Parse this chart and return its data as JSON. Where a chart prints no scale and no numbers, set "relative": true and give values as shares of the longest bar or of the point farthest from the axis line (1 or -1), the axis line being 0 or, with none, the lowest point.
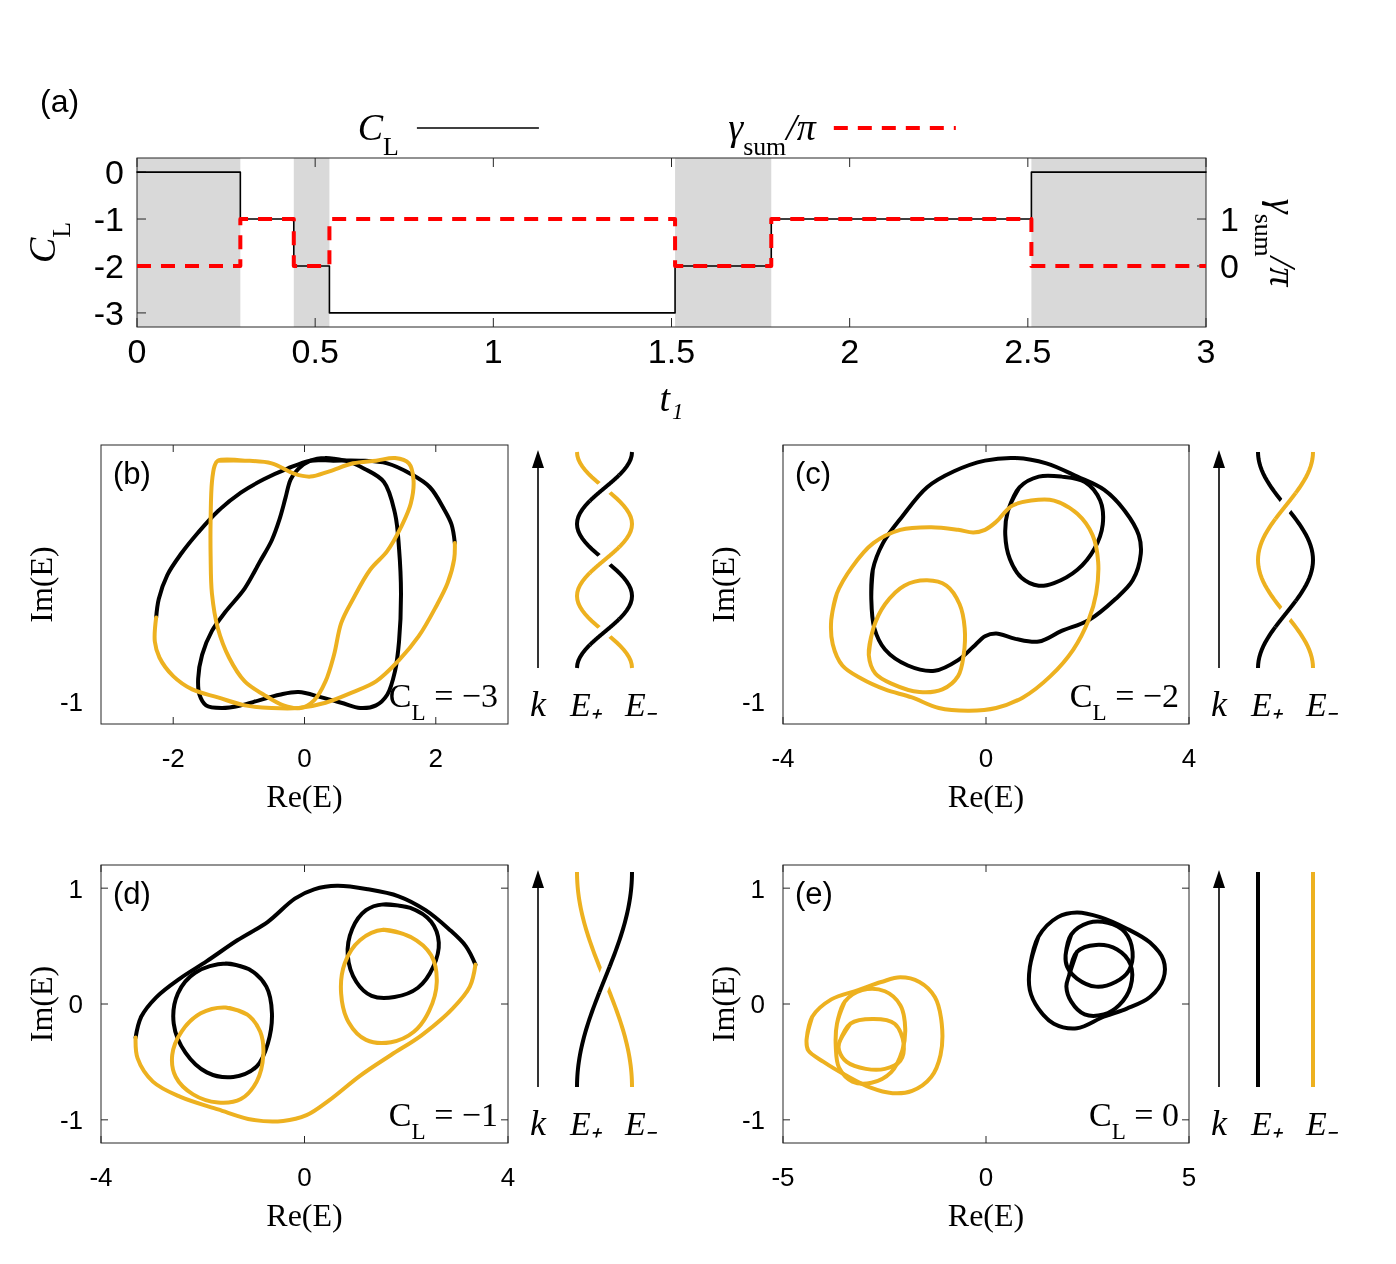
{
  "chart_data": [
    {
      "type": "step",
      "xlabel": "t₁",
      "ylabel": "C$_{L}$",
      "y2label": "γ$_{sum}$/π",
      "annotations": [
        "(a)"
      ],
      "xlim": [
        0,
        3
      ],
      "xticks": [
        0,
        0.5,
        1,
        1.5,
        2,
        2.5,
        3
      ],
      "ylim": [
        -3.3,
        0.3
      ],
      "yticks": [
        -3,
        -2,
        -1,
        0
      ],
      "y2lim": [
        -1.3,
        2.3
      ],
      "y2ticks": [
        0,
        1
      ],
      "legend": "top",
      "bands": [
        {
          "axis": "x",
          "from": 0,
          "to": 0.29,
          "color": "#d9d9d9"
        },
        {
          "axis": "x",
          "from": 0.44,
          "to": 0.54,
          "color": "#d9d9d9"
        },
        {
          "axis": "x",
          "from": 1.51,
          "to": 1.78,
          "color": "#d9d9d9"
        },
        {
          "axis": "x",
          "from": 2.51,
          "to": 3,
          "color": "#d9d9d9"
        }
      ],
      "x": [
        0,
        0.29,
        0.44,
        0.54,
        1.51,
        1.78,
        2.51,
        3
      ],
      "series": [
        {
          "name": "C$_{L}$",
          "color": "#000000",
          "line_style": "solid",
          "values": [
            0,
            -1,
            -2,
            -3,
            -2,
            -1,
            0,
            0
          ]
        },
        {
          "name": "γ$_{sum}$/π",
          "color": "#ff0000",
          "line_style": "dashed",
          "axis": "y2",
          "values": [
            0,
            1,
            0,
            1,
            0,
            1,
            0,
            0
          ]
        }
      ]
    },
    {
      "type": "line",
      "relative": true,
      "xlabel": "Re(E)",
      "ylabel": "Im(E)",
      "annotations": [
        "(b)",
        "C$_{L}$ = −3",
        "k",
        "E₊",
        "E₋",
        "-1"
      ],
      "xlim": [
        -3.1,
        3.1
      ],
      "xticks": [
        -2,
        0,
        2
      ],
      "series": [
        {
          "color": "#000000",
          "x": [
            -2.26,
            -2.22,
            -2.09,
            -1.88,
            -1.62,
            -1.32,
            -0.97,
            -0.62,
            -0.26,
            0.09,
            0.44,
            0.85,
            1.26,
            1.62,
            1.91,
            2.12,
            2.24,
            2.29
          ],
          "values": [
            0.4,
            0.47,
            0.56,
            0.64,
            0.72,
            0.8,
            0.87,
            0.92,
            0.96,
            0.99,
            0.99,
            0.99,
            0.98,
            0.94,
            0.89,
            0.81,
            0.75,
            0.68
          ]
        },
        {
          "color": "#000000",
          "x": [
            0.32,
            0.62,
            0.91,
            1.21,
            1.38,
            1.44,
            1.47,
            1.44,
            1.38,
            1.26,
            1.09,
            0.85,
            0.56,
            0.26,
            -0.09,
            -0.38,
            -0.68,
            -0.97,
            -1.26,
            -1.5,
            -1.6,
            -1.62,
            -1.56,
            -1.41,
            -1.21,
            -0.91,
            -0.68,
            -0.5,
            -0.38,
            -0.29,
            -0.21,
            -0.09,
            0.09,
            0.32,
            0.62
          ],
          "values": [
            1.0,
            0.99,
            0.96,
            0.91,
            0.79,
            0.66,
            0.49,
            0.31,
            0.2,
            0.11,
            0.07,
            0.06,
            0.08,
            0.1,
            0.12,
            0.11,
            0.09,
            0.07,
            0.06,
            0.07,
            0.11,
            0.17,
            0.26,
            0.35,
            0.42,
            0.51,
            0.61,
            0.69,
            0.77,
            0.85,
            0.92,
            0.96,
            0.99,
            1.0,
            0.99
          ]
        },
        {
          "color": "#edb120",
          "x": [
            -2.26,
            -2.28,
            -2.21,
            -2.0,
            -1.71,
            -1.32,
            -0.91,
            -0.5,
            -0.09,
            0.32,
            0.74,
            1.09,
            1.44,
            1.74,
            2.0,
            2.18,
            2.28,
            2.29
          ],
          "values": [
            0.4,
            0.31,
            0.25,
            0.18,
            0.13,
            0.1,
            0.07,
            0.06,
            0.06,
            0.08,
            0.12,
            0.16,
            0.24,
            0.33,
            0.44,
            0.53,
            0.62,
            0.68
          ]
        },
        {
          "color": "#edb120",
          "x": [
            -1.32,
            -0.91,
            -0.5,
            -0.15,
            0.09,
            0.38,
            0.74,
            1.09,
            1.38,
            1.59,
            1.66,
            1.62,
            1.47,
            1.26,
            1.0,
            0.74,
            0.56,
            0.45,
            0.32,
            0.15,
            -0.06,
            -0.32,
            -0.62,
            -0.91,
            -1.15,
            -1.32,
            -1.41,
            -1.43,
            -1.43,
            -1.41,
            -1.37,
            -1.32,
            -0.91
          ],
          "values": [
            0.99,
            0.99,
            0.98,
            0.94,
            0.93,
            0.95,
            0.98,
            0.99,
            1.0,
            0.98,
            0.92,
            0.83,
            0.74,
            0.65,
            0.58,
            0.47,
            0.38,
            0.26,
            0.16,
            0.09,
            0.06,
            0.07,
            0.11,
            0.16,
            0.25,
            0.36,
            0.49,
            0.63,
            0.77,
            0.91,
            0.97,
            0.99,
            0.99
          ]
        }
      ]
    },
    {
      "type": "line",
      "relative": true,
      "xlabel": "Re(E)",
      "ylabel": "Im(E)",
      "annotations": [
        "(c)",
        "C$_{L}$ = −2",
        "k",
        "E₊",
        "E₋",
        "-1"
      ],
      "xlim": [
        -4,
        4
      ],
      "xticks": [
        -4,
        0,
        4
      ],
      "series": [
        {
          "color": "#000000",
          "x": [
            -2.26,
            -2.23,
            -2.03,
            -1.65,
            -1.16,
            -0.63,
            -0.02,
            0.58,
            1.19,
            1.8,
            2.33,
            2.74,
            3.01,
            3.05,
            2.89,
            2.55,
            2.02,
            1.49,
            1.04,
            0.58,
            0.2,
            -0.02,
            -0.25,
            -0.55,
            -1.01,
            -1.54,
            -1.99,
            -2.2,
            -2.26,
            -2.23
          ],
          "values": [
            0.47,
            0.58,
            0.68,
            0.78,
            0.89,
            0.95,
            0.99,
            1.0,
            0.98,
            0.93,
            0.88,
            0.8,
            0.71,
            0.64,
            0.54,
            0.47,
            0.39,
            0.35,
            0.31,
            0.32,
            0.34,
            0.33,
            0.29,
            0.24,
            0.2,
            0.22,
            0.28,
            0.36,
            0.47,
            0.58
          ]
        },
        {
          "color": "#000000",
          "x": [
            0.43,
            0.66,
            1.04,
            1.49,
            1.95,
            2.25,
            2.3,
            2.14,
            1.8,
            1.34,
            1.04,
            0.7,
            0.47,
            0.38,
            0.43,
            0.66
          ],
          "values": [
            0.8,
            0.89,
            0.93,
            0.93,
            0.91,
            0.84,
            0.75,
            0.66,
            0.58,
            0.53,
            0.52,
            0.55,
            0.62,
            0.71,
            0.8,
            0.89
          ]
        },
        {
          "color": "#edb120",
          "x": [
            -3.05,
            -2.94,
            -2.64,
            -2.22,
            -1.69,
            -1.08,
            -0.55,
            -0.25,
            -0.02,
            0.2,
            0.51,
            0.89,
            1.34,
            1.8,
            2.1,
            2.21,
            2.17,
            2.02,
            1.72,
            1.27,
            0.73,
            0.2,
            -0.33,
            -0.93,
            -1.46,
            -1.99,
            -2.45,
            -2.83,
            -3.02,
            -3.05,
            -2.94
          ],
          "values": [
            0.39,
            0.49,
            0.59,
            0.68,
            0.73,
            0.74,
            0.73,
            0.72,
            0.73,
            0.76,
            0.82,
            0.84,
            0.84,
            0.79,
            0.71,
            0.61,
            0.49,
            0.39,
            0.28,
            0.18,
            0.1,
            0.06,
            0.05,
            0.06,
            0.1,
            0.13,
            0.17,
            0.22,
            0.3,
            0.39,
            0.49
          ]
        },
        {
          "color": "#edb120",
          "x": [
            -2.31,
            -2.22,
            -1.99,
            -1.61,
            -1.16,
            -0.78,
            -0.52,
            -0.42,
            -0.44,
            -0.55,
            -0.86,
            -1.31,
            -1.84,
            -2.18,
            -2.31,
            -2.22
          ],
          "values": [
            0.26,
            0.36,
            0.45,
            0.52,
            0.54,
            0.52,
            0.45,
            0.36,
            0.26,
            0.18,
            0.13,
            0.12,
            0.15,
            0.19,
            0.26,
            0.36
          ]
        }
      ]
    },
    {
      "type": "line",
      "xlabel": "Re(E)",
      "ylabel": "Im(E)",
      "annotations": [
        "(d)",
        "C$_{L}$ = −1",
        "k",
        "E₊",
        "E₋"
      ],
      "xlim": [
        -4,
        4
      ],
      "xticks": [
        -4,
        0,
        4
      ],
      "ylim": [
        -1.2,
        1.2
      ],
      "yticks": [
        -1,
        0,
        1
      ],
      "series": [
        {
          "color": "#000000",
          "x": [
            -3.32,
            -3.21,
            -2.91,
            -2.45,
            -1.92,
            -1.32,
            -0.72,
            -0.19,
            0.19,
            0.64,
            1.25,
            1.85,
            2.38,
            2.83,
            3.17,
            3.36
          ],
          "values": [
            -0.29,
            -0.11,
            0.06,
            0.22,
            0.37,
            0.55,
            0.71,
            0.91,
            0.99,
            1.02,
            0.99,
            0.93,
            0.81,
            0.65,
            0.5,
            0.34
          ]
        },
        {
          "color": "#000000",
          "x": [
            -1.55,
            -1.09,
            -0.75,
            -0.64,
            -0.72,
            -0.94,
            -1.4,
            -1.92,
            -2.34,
            -2.57,
            -2.49,
            -2.15,
            -1.55,
            -1.09
          ],
          "values": [
            0.35,
            0.3,
            0.15,
            -0.08,
            -0.34,
            -0.54,
            -0.63,
            -0.59,
            -0.42,
            -0.17,
            0.09,
            0.27,
            0.35,
            0.3
          ]
        },
        {
          "color": "#000000",
          "x": [
            1.55,
            2.08,
            2.49,
            2.64,
            2.53,
            2.23,
            1.77,
            1.32,
            1.02,
            0.85,
            0.94,
            1.21,
            1.55,
            2.08
          ],
          "values": [
            0.86,
            0.83,
            0.71,
            0.53,
            0.32,
            0.14,
            0.06,
            0.07,
            0.19,
            0.42,
            0.65,
            0.81,
            0.86,
            0.83
          ]
        },
        {
          "color": "#edb120",
          "x": [
            -3.32,
            -3.28,
            -2.98,
            -2.45,
            -1.7,
            -1.02,
            -0.42,
            0.04,
            0.49,
            1.09,
            1.7,
            2.3,
            2.91,
            3.25,
            3.36
          ],
          "values": [
            -0.29,
            -0.47,
            -0.67,
            -0.8,
            -0.91,
            -1.0,
            -1.01,
            -0.96,
            -0.83,
            -0.62,
            -0.44,
            -0.27,
            -0.04,
            0.15,
            0.34
          ]
        },
        {
          "color": "#edb120",
          "x": [
            -1.55,
            -1.13,
            -0.87,
            -0.81,
            -0.94,
            -1.25,
            -1.7,
            -2.19,
            -2.53,
            -2.6,
            -2.42,
            -2.04,
            -1.55,
            -1.13
          ],
          "values": [
            -0.03,
            -0.09,
            -0.24,
            -0.44,
            -0.67,
            -0.82,
            -0.85,
            -0.78,
            -0.63,
            -0.44,
            -0.24,
            -0.08,
            -0.03,
            -0.09
          ]
        },
        {
          "color": "#edb120",
          "x": [
            1.55,
            2.08,
            2.49,
            2.6,
            2.45,
            2.15,
            1.7,
            1.21,
            0.87,
            0.72,
            0.79,
            1.09,
            1.55,
            2.08
          ],
          "values": [
            0.64,
            0.58,
            0.42,
            0.19,
            -0.06,
            -0.24,
            -0.33,
            -0.31,
            -0.16,
            0.09,
            0.35,
            0.55,
            0.64,
            0.58
          ]
        }
      ]
    },
    {
      "type": "line",
      "xlabel": "Re(E)",
      "ylabel": "Im(E)",
      "annotations": [
        "(e)",
        "C$_{L}$ = 0",
        "k",
        "E₊",
        "E₋"
      ],
      "xlim": [
        -5,
        5
      ],
      "xticks": [
        -5,
        0,
        5
      ],
      "ylim": [
        -1.2,
        1.2
      ],
      "yticks": [
        -1,
        0,
        1
      ],
      "series": [
        {
          "color": "#000000",
          "x": [
            1.08,
            1.29,
            1.77,
            2.24,
            2.81,
            3.47,
            4.04,
            4.37,
            4.37,
            4.04,
            3.47,
            2.9,
            2.24,
            1.67,
            1.29,
            1.08,
            1.08,
            1.29
          ],
          "values": [
            0.32,
            0.58,
            0.75,
            0.79,
            0.75,
            0.65,
            0.53,
            0.38,
            0.22,
            0.06,
            -0.04,
            -0.11,
            -0.21,
            -0.17,
            -0.04,
            0.12,
            0.32,
            0.58
          ]
        },
        {
          "color": "#000000",
          "x": [
            1.96,
            2.1,
            2.52,
            3.0,
            3.42,
            3.61,
            3.52,
            3.19,
            2.71,
            2.24,
            2.0,
            1.96,
            2.1
          ],
          "values": [
            0.42,
            0.6,
            0.7,
            0.7,
            0.62,
            0.45,
            0.29,
            0.19,
            0.15,
            0.22,
            0.32,
            0.42,
            0.6
          ]
        },
        {
          "color": "#000000",
          "x": [
            2.05,
            2.24,
            2.71,
            3.23,
            3.56,
            3.56,
            3.28,
            2.9,
            2.43,
            2.1,
            1.98,
            2.05,
            2.24
          ],
          "values": [
            0.25,
            0.45,
            0.51,
            0.47,
            0.34,
            0.15,
            -0.01,
            -0.09,
            -0.09,
            0.02,
            0.15,
            0.25,
            0.45
          ]
        },
        {
          "color": "#edb120",
          "x": [
            -4.42,
            -4.28,
            -3.81,
            -3.15,
            -2.58,
            -2.11,
            -1.64,
            -1.26,
            -1.09,
            -1.12,
            -1.35,
            -1.82,
            -2.3,
            -2.86,
            -3.43,
            -4.0,
            -4.38,
            -4.42,
            -4.28
          ],
          "values": [
            -0.31,
            -0.11,
            0.04,
            0.12,
            0.19,
            0.23,
            0.19,
            0.06,
            -0.17,
            -0.44,
            -0.63,
            -0.75,
            -0.77,
            -0.72,
            -0.62,
            -0.5,
            -0.4,
            -0.31,
            -0.11
          ]
        },
        {
          "color": "#edb120",
          "x": [
            -3.67,
            -3.48,
            -3.05,
            -2.49,
            -2.11,
            -1.99,
            -2.06,
            -2.34,
            -2.82,
            -3.29,
            -3.62,
            -3.7,
            -3.67,
            -3.48
          ],
          "values": [
            -0.17,
            0.02,
            0.12,
            0.11,
            -0.01,
            -0.21,
            -0.4,
            -0.59,
            -0.68,
            -0.67,
            -0.55,
            -0.37,
            -0.17,
            0.02
          ]
        },
        {
          "color": "#edb120",
          "x": [
            -3.62,
            -3.34,
            -2.77,
            -2.25,
            -2.03,
            -2.11,
            -2.49,
            -2.96,
            -3.43,
            -3.62,
            -3.62,
            -3.34
          ],
          "values": [
            -0.34,
            -0.17,
            -0.13,
            -0.17,
            -0.34,
            -0.49,
            -0.56,
            -0.56,
            -0.5,
            -0.4,
            -0.34,
            -0.17
          ]
        }
      ]
    }
  ]
}
